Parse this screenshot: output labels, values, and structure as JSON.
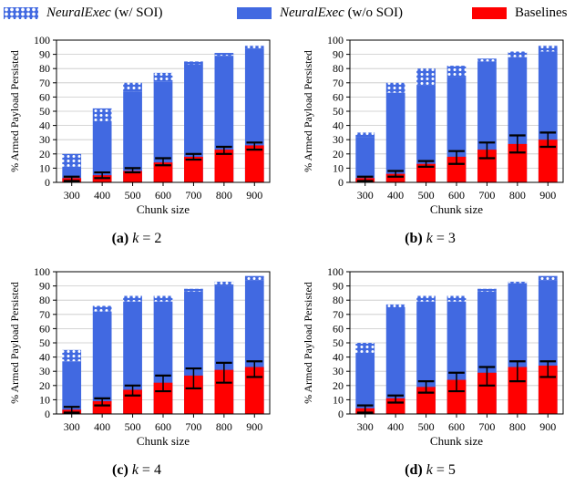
{
  "legend": {
    "soi_name": "NeuralExec",
    "soi_suffix": "(w/ SOI)",
    "nosoi_name": "NeuralExec",
    "nosoi_suffix": "(w/o SOI)",
    "baselines": "Baselines"
  },
  "colors": {
    "neuralexec": "#4169e1",
    "baselines": "#ff0000",
    "dots": "#ffffff",
    "errorbar": "#000000"
  },
  "chart_data": [
    {
      "type": "bar",
      "caption_label": "(a)",
      "caption_k": "k",
      "caption_eq": "= 2",
      "xlabel": "Chunk size",
      "ylabel": "% Armed Payload Persisted",
      "ylim": [
        0,
        100
      ],
      "yticks": [
        0,
        10,
        20,
        30,
        40,
        50,
        60,
        70,
        80,
        90,
        100
      ],
      "categories": [
        "300",
        "400",
        "500",
        "600",
        "700",
        "800",
        "900"
      ],
      "series": [
        {
          "name": "NeuralExec (w/ SOI)",
          "values": [
            20,
            52,
            70,
            77,
            85,
            91,
            96
          ]
        },
        {
          "name": "NeuralExec (w/o SOI)",
          "values": [
            11,
            43,
            64,
            71,
            83,
            89,
            94
          ]
        },
        {
          "name": "Baselines",
          "values": [
            3,
            5,
            8,
            14,
            18,
            23,
            26
          ],
          "err_low": [
            1,
            3,
            7,
            12,
            16,
            20,
            23
          ],
          "err_high": [
            4,
            7,
            10,
            17,
            20,
            25,
            28
          ]
        }
      ]
    },
    {
      "type": "bar",
      "caption_label": "(b)",
      "caption_k": "k",
      "caption_eq": "= 3",
      "xlabel": "Chunk size",
      "ylabel": "% Armed Payload Persisted",
      "ylim": [
        0,
        100
      ],
      "yticks": [
        0,
        10,
        20,
        30,
        40,
        50,
        60,
        70,
        80,
        90,
        100
      ],
      "categories": [
        "300",
        "400",
        "500",
        "600",
        "700",
        "800",
        "900"
      ],
      "series": [
        {
          "name": "NeuralExec (w/ SOI)",
          "values": [
            35,
            70,
            80,
            82,
            87,
            92,
            96
          ]
        },
        {
          "name": "NeuralExec (w/o SOI)",
          "values": [
            32,
            63,
            68,
            74,
            85,
            88,
            92
          ]
        },
        {
          "name": "Baselines",
          "values": [
            3,
            6,
            13,
            18,
            23,
            27,
            30
          ],
          "err_low": [
            1,
            4,
            11,
            13,
            17,
            21,
            25
          ],
          "err_high": [
            4,
            8,
            15,
            22,
            28,
            33,
            35
          ]
        }
      ]
    },
    {
      "type": "bar",
      "caption_label": "(c)",
      "caption_k": "k",
      "caption_eq": "= 4",
      "xlabel": "Chunk size",
      "ylabel": "% Armed Payload Persisted",
      "ylim": [
        0,
        100
      ],
      "yticks": [
        0,
        10,
        20,
        30,
        40,
        50,
        60,
        70,
        80,
        90,
        100
      ],
      "categories": [
        "300",
        "400",
        "500",
        "600",
        "700",
        "800",
        "900"
      ],
      "series": [
        {
          "name": "NeuralExec (w/ SOI)",
          "values": [
            45,
            76,
            83,
            83,
            88,
            93,
            97
          ]
        },
        {
          "name": "NeuralExec (w/o SOI)",
          "values": [
            37,
            72,
            79,
            79,
            86,
            90,
            94
          ]
        },
        {
          "name": "Baselines",
          "values": [
            3,
            9,
            17,
            22,
            27,
            31,
            33
          ],
          "err_low": [
            1,
            6,
            13,
            16,
            18,
            22,
            26
          ],
          "err_high": [
            5,
            11,
            20,
            27,
            32,
            36,
            37
          ]
        }
      ]
    },
    {
      "type": "bar",
      "caption_label": "(d)",
      "caption_k": "k",
      "caption_eq": "= 5",
      "xlabel": "Chunk size",
      "ylabel": "% Armed Payload Persisted",
      "ylim": [
        0,
        100
      ],
      "yticks": [
        0,
        10,
        20,
        30,
        40,
        50,
        60,
        70,
        80,
        90,
        100
      ],
      "categories": [
        "300",
        "400",
        "500",
        "600",
        "700",
        "800",
        "900"
      ],
      "series": [
        {
          "name": "NeuralExec (w/ SOI)",
          "values": [
            50,
            77,
            83,
            83,
            88,
            93,
            97
          ]
        },
        {
          "name": "NeuralExec (w/o SOI)",
          "values": [
            43,
            75,
            79,
            79,
            86,
            92,
            94
          ]
        },
        {
          "name": "Baselines",
          "values": [
            4,
            11,
            19,
            24,
            29,
            33,
            34
          ],
          "err_low": [
            1,
            8,
            15,
            16,
            20,
            23,
            26
          ],
          "err_high": [
            6,
            13,
            23,
            29,
            33,
            37,
            37
          ]
        }
      ]
    }
  ]
}
